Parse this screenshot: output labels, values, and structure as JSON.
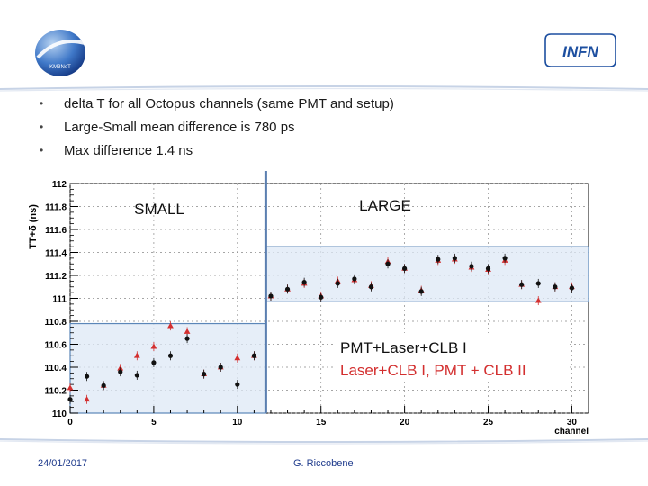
{
  "logos": {
    "left_text": "KM3NeT",
    "right_text": "INFN"
  },
  "bullets": [
    "delta T for all Octopus channels (same PMT and setup)",
    "Large-Small mean difference is 780 ps",
    "Max difference 1.4 ns"
  ],
  "footer": {
    "date": "24/01/2017",
    "author": "G. Riccobene"
  },
  "colors": {
    "series_black": "#111111",
    "series_red": "#d32f2f",
    "box_fill": "#dde8f5",
    "box_stroke": "#5b86b8",
    "divider": "#5b7fb0",
    "rule": "#c7d3e6"
  },
  "chart_data": {
    "type": "scatter",
    "xlabel": "channel",
    "ylabel": "TT+δ (ns)",
    "xlim": [
      0,
      31
    ],
    "ylim": [
      110,
      112
    ],
    "xticks": [
      0,
      5,
      10,
      15,
      20,
      25,
      30
    ],
    "yticks": [
      110,
      110.2,
      110.4,
      110.6,
      110.8,
      111,
      111.2,
      111.4,
      111.6,
      111.8,
      112
    ],
    "divider_x": 11.7,
    "series": [
      {
        "name": "PMT+Laser+CLB I",
        "marker": "circle",
        "points": [
          [
            0,
            110.12
          ],
          [
            1,
            110.32
          ],
          [
            2,
            110.24
          ],
          [
            3,
            110.36
          ],
          [
            4,
            110.33
          ],
          [
            5,
            110.44
          ],
          [
            6,
            110.5
          ],
          [
            7,
            110.65
          ],
          [
            8,
            110.34
          ],
          [
            9,
            110.4
          ],
          [
            10,
            110.25
          ],
          [
            11,
            110.5
          ],
          [
            12,
            111.02
          ],
          [
            13,
            111.08
          ],
          [
            14,
            111.14
          ],
          [
            15,
            111.01
          ],
          [
            16,
            111.13
          ],
          [
            17,
            111.17
          ],
          [
            18,
            111.1
          ],
          [
            19,
            111.3
          ],
          [
            20,
            111.26
          ],
          [
            21,
            111.06
          ],
          [
            22,
            111.34
          ],
          [
            23,
            111.35
          ],
          [
            24,
            111.28
          ],
          [
            25,
            111.26
          ],
          [
            26,
            111.35
          ],
          [
            27,
            111.12
          ],
          [
            28,
            111.13
          ],
          [
            29,
            111.1
          ],
          [
            30,
            111.09
          ]
        ]
      },
      {
        "name": "Laser+CLB I, PMT + CLB II",
        "marker": "triangle",
        "points": [
          [
            0,
            110.22
          ],
          [
            1,
            110.12
          ],
          [
            2,
            110.24
          ],
          [
            3,
            110.39
          ],
          [
            4,
            110.5
          ],
          [
            5,
            110.58
          ],
          [
            6,
            110.76
          ],
          [
            7,
            110.71
          ],
          [
            8,
            110.34
          ],
          [
            9,
            110.4
          ],
          [
            10,
            110.48
          ],
          [
            11,
            110.5
          ],
          [
            12,
            111.02
          ],
          [
            13,
            111.08
          ],
          [
            14,
            111.13
          ],
          [
            15,
            111.02
          ],
          [
            16,
            111.15
          ],
          [
            17,
            111.16
          ],
          [
            18,
            111.11
          ],
          [
            19,
            111.32
          ],
          [
            20,
            111.26
          ],
          [
            21,
            111.07
          ],
          [
            22,
            111.33
          ],
          [
            23,
            111.34
          ],
          [
            24,
            111.27
          ],
          [
            25,
            111.25
          ],
          [
            26,
            111.33
          ],
          [
            27,
            111.12
          ],
          [
            28,
            110.98
          ],
          [
            29,
            111.1
          ],
          [
            30,
            111.1
          ]
        ]
      }
    ],
    "regions": [
      {
        "label": "SMALL",
        "x_range": [
          0,
          11.7
        ],
        "y_range": [
          110,
          110.78
        ]
      },
      {
        "label": "LARGE",
        "x_range": [
          11.7,
          31
        ],
        "y_range": [
          110.97,
          111.45
        ]
      }
    ],
    "legend": [
      "PMT+Laser+CLB I",
      "Laser+CLB I, PMT + CLB II"
    ]
  }
}
